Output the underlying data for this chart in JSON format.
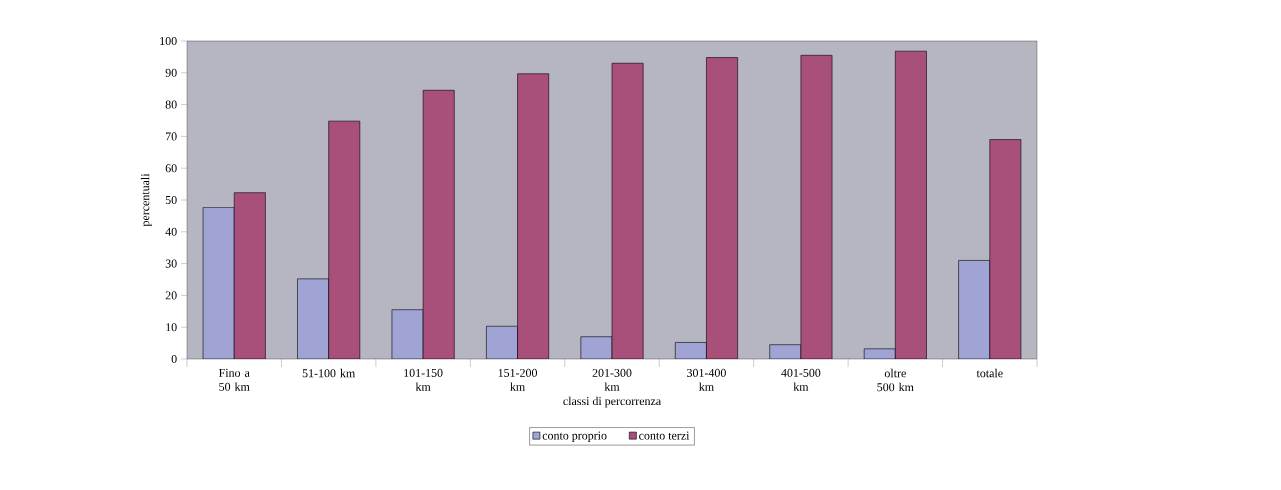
{
  "chart_data": {
    "type": "bar",
    "xlabel": "classi di percorrenza",
    "ylabel": "percentuali",
    "categories": [
      "Fino a 50 km",
      "51-100 km",
      "101-150 km",
      "151-200 km",
      "201-300 km",
      "301-400 km",
      "401-500 km",
      "oltre 500 km",
      "totale"
    ],
    "series": [
      {
        "name": "conto proprio",
        "color": "#a0a4d4",
        "values": [
          47.7,
          25.2,
          15.5,
          10.3,
          7.0,
          5.2,
          4.5,
          3.2,
          31.0
        ]
      },
      {
        "name": "conto terzi",
        "color": "#a8507a",
        "values": [
          52.3,
          74.8,
          84.5,
          89.7,
          93.0,
          94.8,
          95.5,
          96.8,
          69.0
        ]
      }
    ],
    "ylim": [
      0,
      100
    ],
    "yticks": [
      0,
      10,
      20,
      30,
      40,
      50,
      60,
      70,
      80,
      90,
      100
    ],
    "grid": false,
    "legend": "bottom"
  }
}
